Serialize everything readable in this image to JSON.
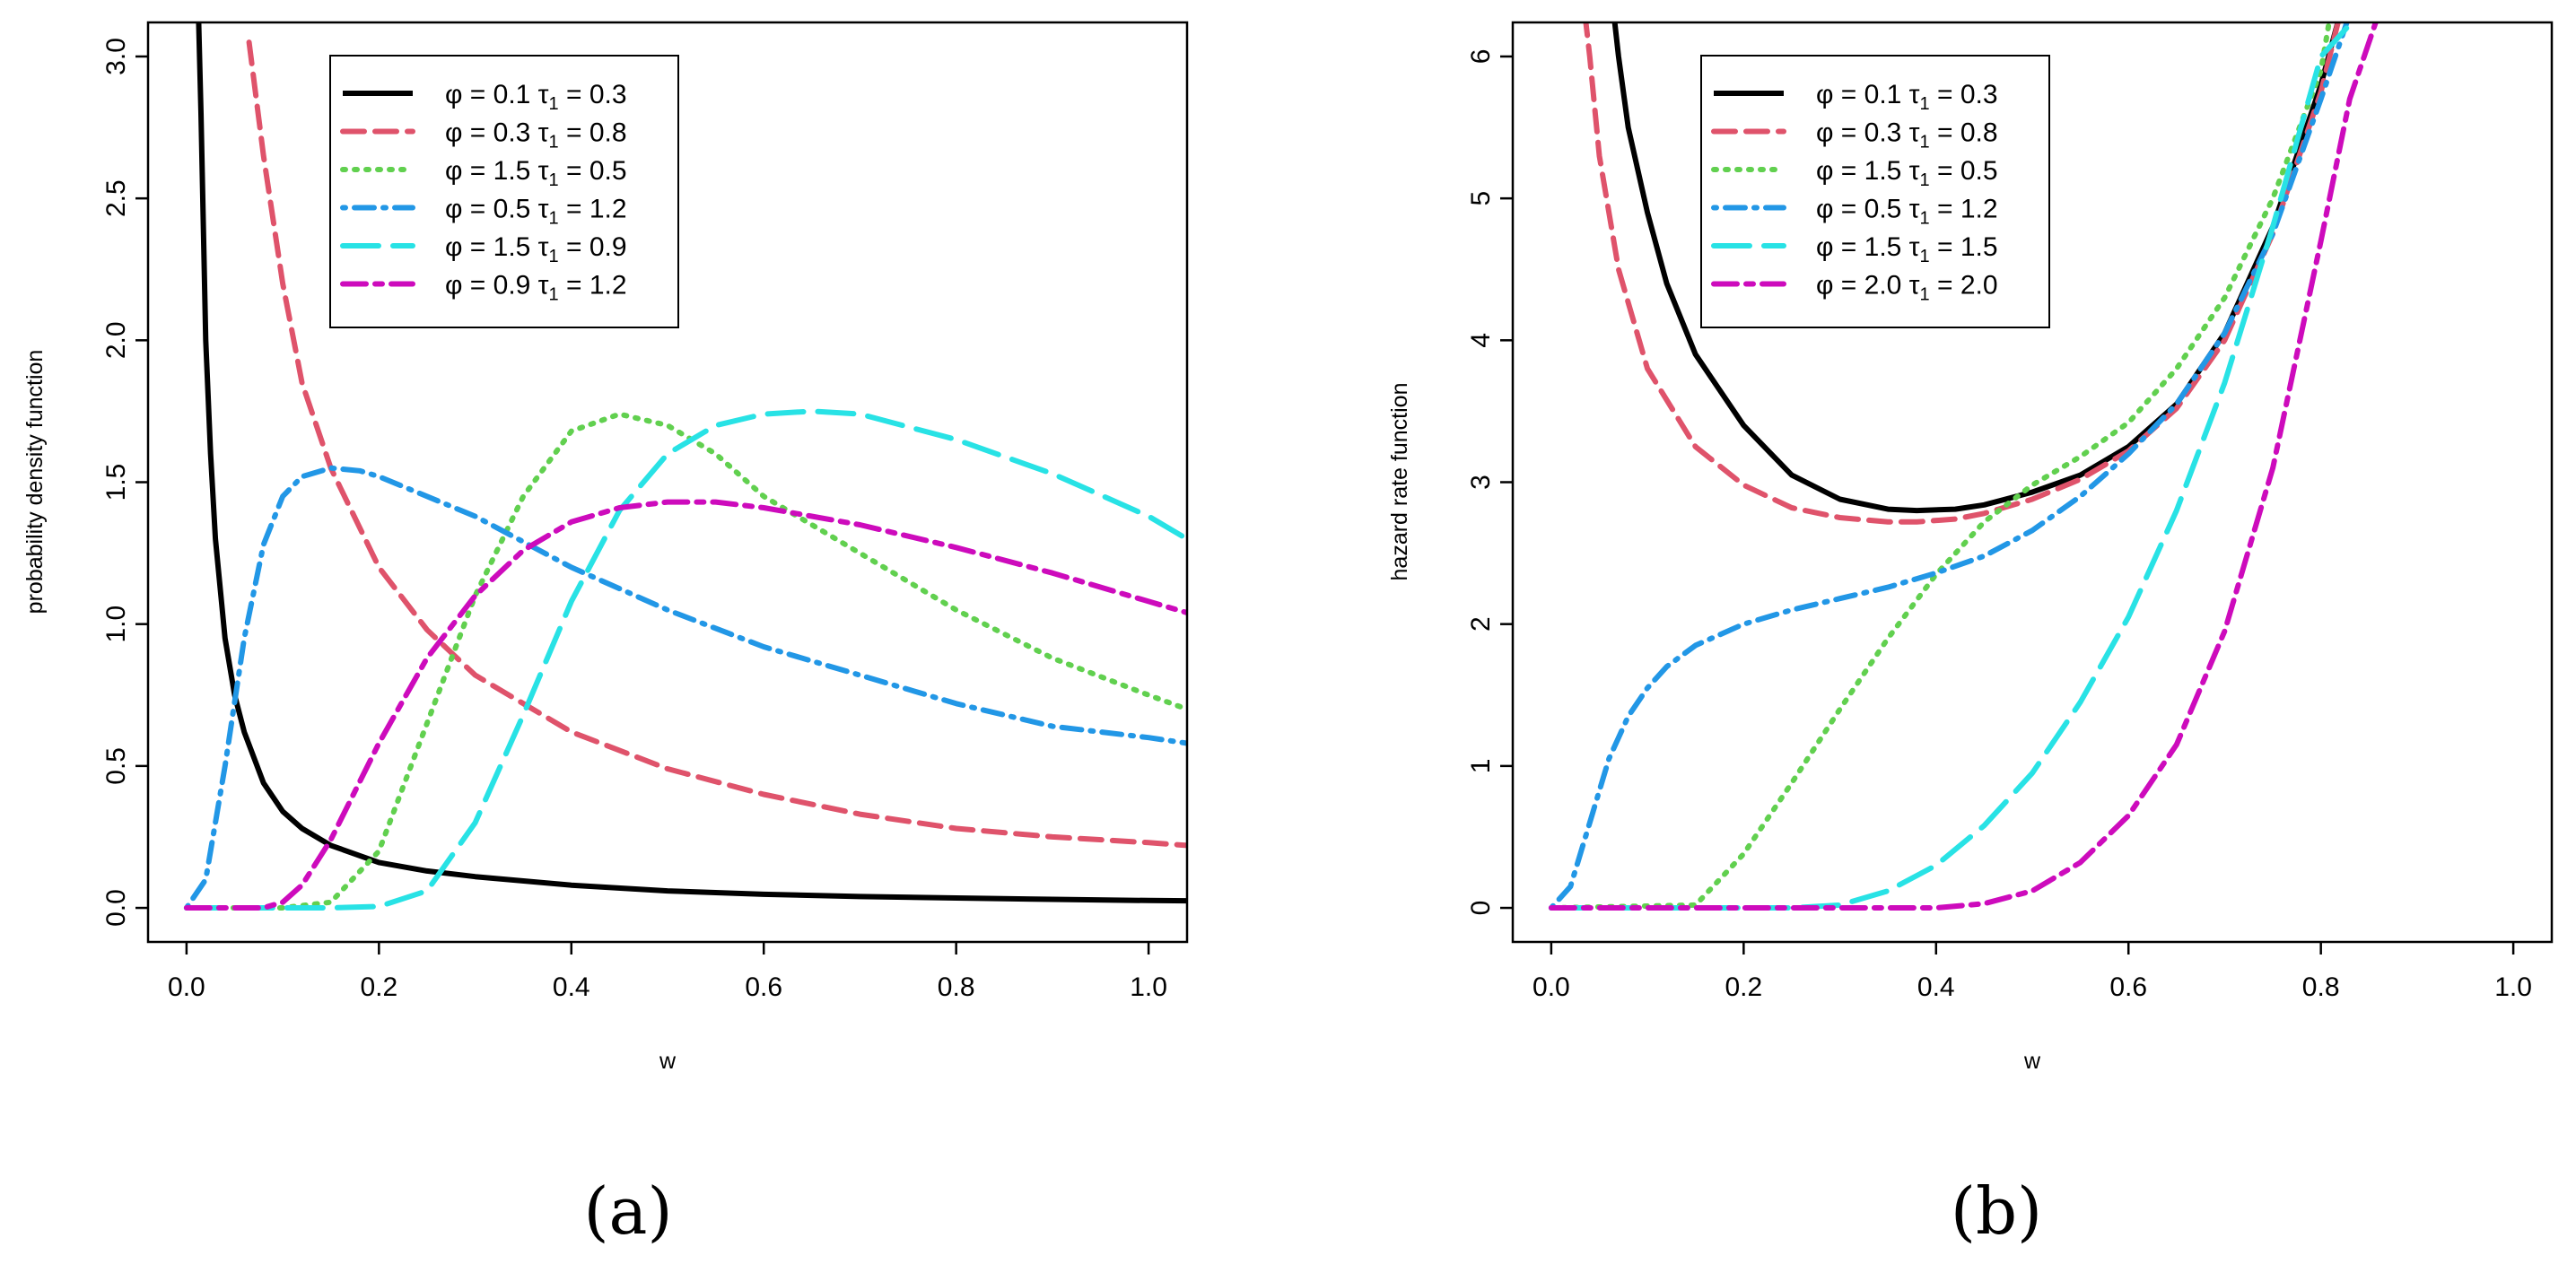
{
  "colors": {
    "black": "#000000",
    "red": "#df536b",
    "green": "#61d04f",
    "blue": "#2297e6",
    "cyan": "#28e2e5",
    "magenta": "#cd0bbc"
  },
  "chart_data": [
    {
      "type": "line",
      "panel": "a",
      "caption": "(a)",
      "xlabel": "w",
      "ylabel": "probability density function",
      "xlim": [
        -0.04,
        1.04
      ],
      "ylim": [
        -0.12,
        3.12
      ],
      "xticks": [
        0.0,
        0.2,
        0.4,
        0.6,
        0.8,
        1.0
      ],
      "xtick_labels": [
        "0.0",
        "0.2",
        "0.4",
        "0.6",
        "0.8",
        "1.0"
      ],
      "yticks": [
        0.0,
        0.5,
        1.0,
        1.5,
        2.0,
        2.5,
        3.0
      ],
      "ytick_labels": [
        "0.0",
        "0.5",
        "1.0",
        "1.5",
        "2.0",
        "2.5",
        "3.0"
      ],
      "legend_position": "top-center",
      "series": [
        {
          "name": "φ = 0.1  τ1 = 0.3",
          "phi": "0.1",
          "tau": "0.3",
          "color": "#000000",
          "dash": "solid",
          "x": [
            0.012,
            0.015,
            0.02,
            0.025,
            0.03,
            0.04,
            0.05,
            0.06,
            0.08,
            0.1,
            0.12,
            0.15,
            0.2,
            0.25,
            0.3,
            0.4,
            0.5,
            0.6,
            0.7,
            0.8,
            0.9,
            1.0,
            1.04
          ],
          "y": [
            3.2,
            2.8,
            2.0,
            1.6,
            1.3,
            0.95,
            0.75,
            0.62,
            0.44,
            0.34,
            0.28,
            0.22,
            0.16,
            0.13,
            0.11,
            0.08,
            0.06,
            0.048,
            0.04,
            0.035,
            0.03,
            0.026,
            0.025
          ]
        },
        {
          "name": "φ = 0.3  τ1 = 0.8",
          "phi": "0.3",
          "tau": "0.8",
          "color": "#df536b",
          "dash": "dashed",
          "x": [
            0.065,
            0.08,
            0.1,
            0.12,
            0.15,
            0.2,
            0.25,
            0.3,
            0.4,
            0.5,
            0.6,
            0.7,
            0.8,
            0.9,
            1.0,
            1.04
          ],
          "y": [
            3.05,
            2.65,
            2.2,
            1.85,
            1.55,
            1.2,
            0.98,
            0.82,
            0.62,
            0.49,
            0.4,
            0.33,
            0.28,
            0.25,
            0.23,
            0.22
          ]
        },
        {
          "name": "φ = 1.5  τ1 = 0.5",
          "phi": "1.5",
          "tau": "0.5",
          "color": "#61d04f",
          "dash": "dotted",
          "x": [
            0.0,
            0.1,
            0.15,
            0.2,
            0.25,
            0.3,
            0.35,
            0.4,
            0.45,
            0.5,
            0.55,
            0.6,
            0.7,
            0.8,
            0.9,
            1.0,
            1.04
          ],
          "y": [
            0.0,
            0.0,
            0.02,
            0.2,
            0.65,
            1.1,
            1.45,
            1.68,
            1.74,
            1.7,
            1.6,
            1.45,
            1.25,
            1.05,
            0.88,
            0.75,
            0.7
          ]
        },
        {
          "name": "φ = 0.5  τ1 = 1.2",
          "phi": "0.5",
          "tau": "1.2",
          "color": "#2297e6",
          "dash": "dotdash",
          "x": [
            0.0,
            0.02,
            0.04,
            0.06,
            0.08,
            0.1,
            0.12,
            0.15,
            0.18,
            0.2,
            0.3,
            0.4,
            0.5,
            0.6,
            0.7,
            0.8,
            0.9,
            1.0,
            1.04
          ],
          "y": [
            0.0,
            0.1,
            0.5,
            0.95,
            1.28,
            1.45,
            1.52,
            1.55,
            1.54,
            1.52,
            1.38,
            1.2,
            1.05,
            0.92,
            0.82,
            0.72,
            0.64,
            0.6,
            0.58
          ]
        },
        {
          "name": "φ = 1.5  τ1 = 0.9",
          "phi": "1.5",
          "tau": "0.9",
          "color": "#28e2e5",
          "dash": "longdash",
          "x": [
            0.0,
            0.15,
            0.2,
            0.25,
            0.3,
            0.35,
            0.4,
            0.45,
            0.5,
            0.55,
            0.6,
            0.65,
            0.7,
            0.8,
            0.9,
            1.0,
            1.04
          ],
          "y": [
            0.0,
            0.0,
            0.005,
            0.06,
            0.3,
            0.68,
            1.08,
            1.4,
            1.6,
            1.7,
            1.74,
            1.75,
            1.74,
            1.65,
            1.53,
            1.38,
            1.3
          ]
        },
        {
          "name": "φ = 0.9  τ1 = 1.2",
          "phi": "0.9",
          "tau": "1.2",
          "color": "#cd0bbc",
          "dash": "twodash",
          "x": [
            0.0,
            0.08,
            0.1,
            0.12,
            0.15,
            0.2,
            0.25,
            0.3,
            0.35,
            0.4,
            0.45,
            0.5,
            0.55,
            0.6,
            0.7,
            0.8,
            0.9,
            1.0,
            1.04
          ],
          "y": [
            0.0,
            0.0,
            0.02,
            0.08,
            0.24,
            0.58,
            0.88,
            1.1,
            1.26,
            1.36,
            1.41,
            1.43,
            1.43,
            1.41,
            1.35,
            1.27,
            1.18,
            1.08,
            1.04
          ]
        }
      ]
    },
    {
      "type": "line",
      "panel": "b",
      "caption": "(b)",
      "xlabel": "w",
      "ylabel": "hazard rate function",
      "xlim": [
        -0.04,
        1.04
      ],
      "ylim": [
        -0.24,
        6.24
      ],
      "xticks": [
        0.0,
        0.2,
        0.4,
        0.6,
        0.8,
        1.0
      ],
      "xtick_labels": [
        "0.0",
        "0.2",
        "0.4",
        "0.6",
        "0.8",
        "1.0"
      ],
      "yticks": [
        0,
        1,
        2,
        3,
        4,
        5,
        6
      ],
      "ytick_labels": [
        "0",
        "1",
        "2",
        "3",
        "4",
        "5",
        "6"
      ],
      "legend_position": "top-center",
      "series": [
        {
          "name": "φ = 0.1  τ1 = 0.3",
          "phi": "0.1",
          "tau": "0.3",
          "color": "#000000",
          "dash": "solid",
          "x": [
            0.065,
            0.07,
            0.08,
            0.1,
            0.12,
            0.15,
            0.2,
            0.25,
            0.3,
            0.35,
            0.38,
            0.42,
            0.45,
            0.5,
            0.55,
            0.6,
            0.65,
            0.7,
            0.75,
            0.8,
            0.82
          ],
          "y": [
            6.3,
            6.0,
            5.5,
            4.9,
            4.4,
            3.9,
            3.4,
            3.05,
            2.88,
            2.81,
            2.8,
            2.81,
            2.84,
            2.93,
            3.05,
            3.25,
            3.55,
            4.05,
            4.8,
            5.8,
            6.3
          ]
        },
        {
          "name": "φ = 0.3  τ1 = 0.8",
          "phi": "0.3",
          "tau": "0.8",
          "color": "#df536b",
          "dash": "dashed",
          "x": [
            0.035,
            0.04,
            0.05,
            0.07,
            0.1,
            0.15,
            0.2,
            0.25,
            0.3,
            0.35,
            0.38,
            0.42,
            0.45,
            0.5,
            0.55,
            0.6,
            0.65,
            0.7,
            0.75,
            0.8,
            0.82
          ],
          "y": [
            6.3,
            6.0,
            5.3,
            4.5,
            3.8,
            3.25,
            2.98,
            2.82,
            2.75,
            2.72,
            2.72,
            2.74,
            2.78,
            2.88,
            3.02,
            3.22,
            3.52,
            4.0,
            4.75,
            5.75,
            6.3
          ]
        },
        {
          "name": "φ = 1.5  τ1 = 0.5",
          "phi": "1.5",
          "tau": "0.5",
          "color": "#61d04f",
          "dash": "dotted",
          "x": [
            0.0,
            0.15,
            0.2,
            0.25,
            0.3,
            0.35,
            0.4,
            0.45,
            0.5,
            0.55,
            0.6,
            0.65,
            0.7,
            0.75,
            0.8,
            0.81
          ],
          "y": [
            0.0,
            0.02,
            0.38,
            0.88,
            1.4,
            1.9,
            2.35,
            2.72,
            2.98,
            3.18,
            3.42,
            3.8,
            4.3,
            5.0,
            5.9,
            6.3
          ]
        },
        {
          "name": "φ = 0.5  τ1 = 1.2",
          "phi": "0.5",
          "tau": "1.2",
          "color": "#2297e6",
          "dash": "dotdash",
          "x": [
            0.0,
            0.02,
            0.04,
            0.06,
            0.08,
            0.1,
            0.12,
            0.15,
            0.2,
            0.25,
            0.3,
            0.35,
            0.4,
            0.45,
            0.5,
            0.55,
            0.6,
            0.65,
            0.7,
            0.75,
            0.8,
            0.83
          ],
          "y": [
            0.0,
            0.15,
            0.6,
            1.05,
            1.35,
            1.55,
            1.7,
            1.85,
            2.0,
            2.1,
            2.18,
            2.26,
            2.36,
            2.48,
            2.66,
            2.9,
            3.2,
            3.55,
            4.05,
            4.75,
            5.7,
            6.3
          ]
        },
        {
          "name": "φ = 1.5  τ1 = 1.5",
          "phi": "1.5",
          "tau": "1.5",
          "color": "#28e2e5",
          "dash": "longdash",
          "x": [
            0.0,
            0.25,
            0.3,
            0.35,
            0.4,
            0.45,
            0.5,
            0.55,
            0.6,
            0.65,
            0.7,
            0.75,
            0.8,
            0.84
          ],
          "y": [
            0.0,
            0.0,
            0.02,
            0.12,
            0.3,
            0.58,
            0.95,
            1.45,
            2.05,
            2.8,
            3.7,
            4.8,
            6.0,
            6.3
          ]
        },
        {
          "name": "φ = 2.0  τ1 = 2.0",
          "phi": "2.0",
          "tau": "2.0",
          "color": "#cd0bbc",
          "dash": "twodash",
          "x": [
            0.0,
            0.4,
            0.45,
            0.5,
            0.55,
            0.6,
            0.65,
            0.7,
            0.75,
            0.8,
            0.83,
            0.86
          ],
          "y": [
            0.0,
            0.0,
            0.03,
            0.12,
            0.32,
            0.65,
            1.15,
            1.95,
            3.1,
            4.7,
            5.7,
            6.3
          ]
        }
      ]
    }
  ]
}
